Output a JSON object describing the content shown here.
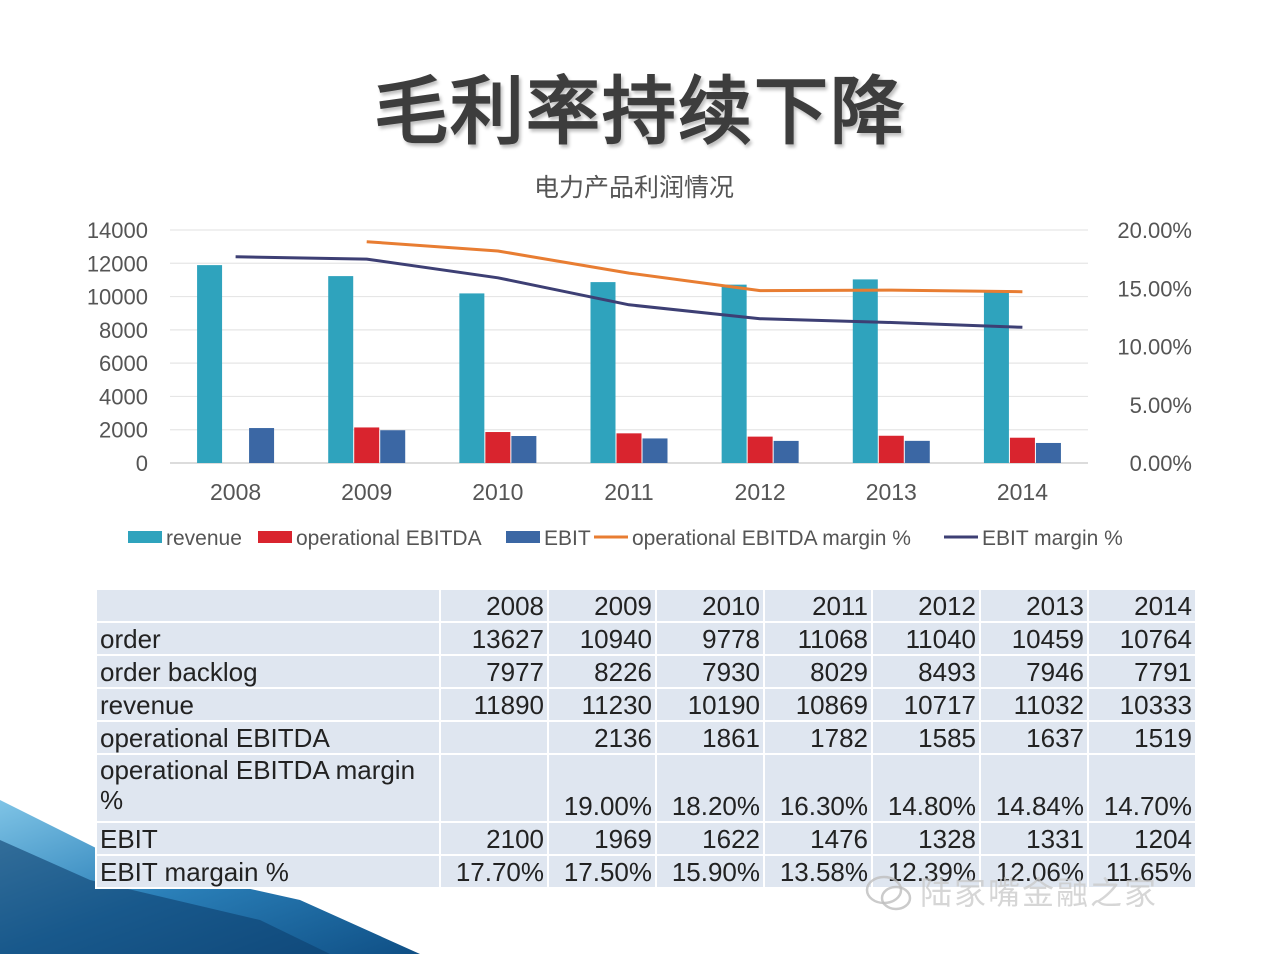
{
  "title": "毛利率持续下降",
  "watermark": "陆家嘴金融之家",
  "colors": {
    "revenue": "#2fa3bd",
    "operational_ebitda": "#d9242e",
    "ebit": "#3b67a4",
    "operational_ebitda_margin": "#e87d32",
    "ebit_margin": "#3d3f74"
  },
  "chart_data": {
    "type": "bar",
    "title": "电力产品利润情况",
    "categories": [
      "2008",
      "2009",
      "2010",
      "2011",
      "2012",
      "2013",
      "2014"
    ],
    "series": [
      {
        "name": "revenue",
        "kind": "bar",
        "axis": "left",
        "values": [
          11890,
          11230,
          10190,
          10869,
          10717,
          11032,
          10333
        ]
      },
      {
        "name": "operational EBITDA",
        "kind": "bar",
        "axis": "left",
        "values": [
          null,
          2136,
          1861,
          1782,
          1585,
          1637,
          1519
        ]
      },
      {
        "name": "EBIT",
        "kind": "bar",
        "axis": "left",
        "values": [
          2100,
          1969,
          1622,
          1476,
          1328,
          1331,
          1204
        ]
      },
      {
        "name": "operational EBITDA margin %",
        "kind": "line",
        "axis": "right",
        "values": [
          null,
          19.0,
          18.2,
          16.3,
          14.8,
          14.84,
          14.7
        ]
      },
      {
        "name": "EBIT margin %",
        "kind": "line",
        "axis": "right",
        "values": [
          17.7,
          17.5,
          15.9,
          13.58,
          12.39,
          12.06,
          11.65
        ]
      }
    ],
    "y_left": {
      "min": 0,
      "max": 14000,
      "ticks": [
        "0",
        "2000",
        "4000",
        "6000",
        "8000",
        "10000",
        "12000",
        "14000"
      ]
    },
    "y_right": {
      "min": 0,
      "max": 20,
      "ticks": [
        "0.00%",
        "5.00%",
        "10.00%",
        "15.00%",
        "20.00%"
      ]
    },
    "grid": true,
    "legend_position": "bottom"
  },
  "table": {
    "header": [
      "",
      "2008",
      "2009",
      "2010",
      "2011",
      "2012",
      "2013",
      "2014"
    ],
    "rows": [
      {
        "label": "order",
        "values": [
          "13627",
          "10940",
          "9778",
          "11068",
          "11040",
          "10459",
          "10764"
        ]
      },
      {
        "label": "order backlog",
        "values": [
          "7977",
          "8226",
          "7930",
          "8029",
          "8493",
          "7946",
          "7791"
        ]
      },
      {
        "label": "revenue",
        "values": [
          "11890",
          "11230",
          "10190",
          "10869",
          "10717",
          "11032",
          "10333"
        ]
      },
      {
        "label": "operational EBITDA",
        "values": [
          "",
          "2136",
          "1861",
          "1782",
          "1585",
          "1637",
          "1519"
        ]
      },
      {
        "label": "operational EBITDA margin %",
        "values": [
          "",
          "19.00%",
          "18.20%",
          "16.30%",
          "14.80%",
          "14.84%",
          "14.70%"
        ]
      },
      {
        "label": "EBIT",
        "values": [
          "2100",
          "1969",
          "1622",
          "1476",
          "1328",
          "1331",
          "1204"
        ]
      },
      {
        "label": "EBIT margain %",
        "values": [
          "17.70%",
          "17.50%",
          "15.90%",
          "13.58%",
          "12.39%",
          "12.06%",
          "11.65%"
        ]
      }
    ]
  }
}
